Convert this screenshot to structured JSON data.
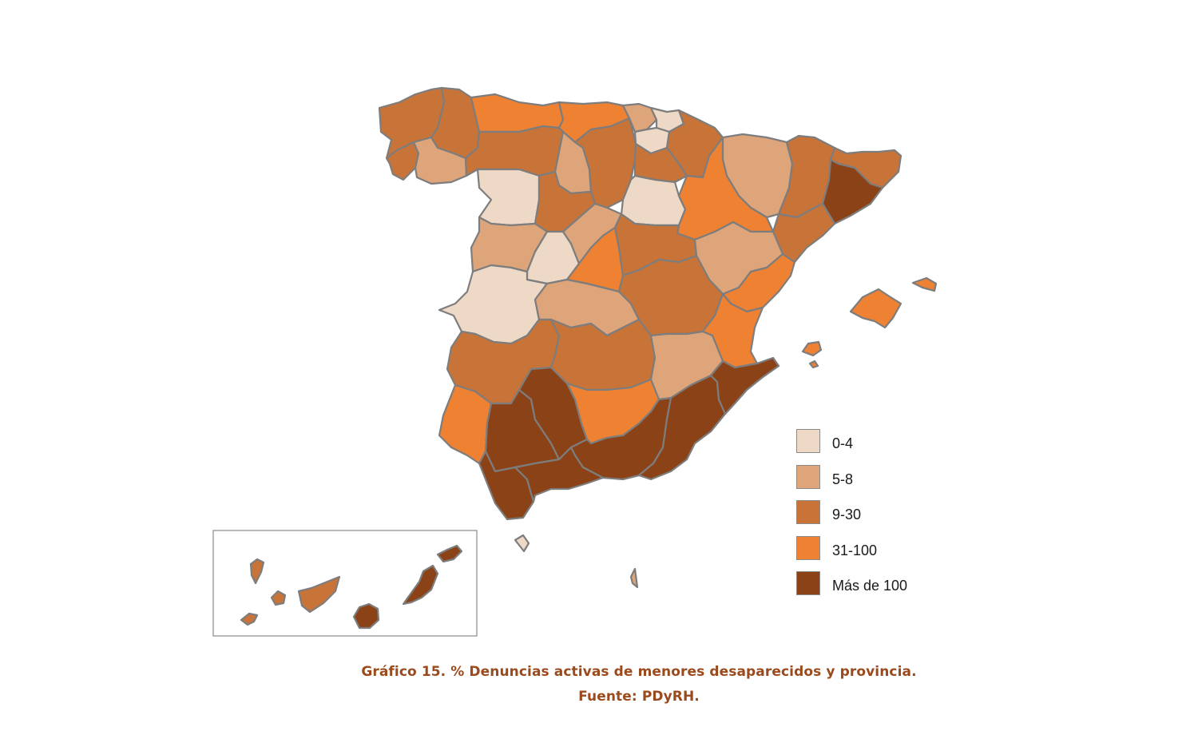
{
  "colors": {
    "c1": "#eed8c6",
    "c2": "#dfa57a",
    "c3": "#c87337",
    "c4": "#ee8132",
    "c5": "#8b4216",
    "border": "#7d7d7d",
    "caption": "#9a4a1c"
  },
  "legend": {
    "items": [
      {
        "label": "0-4",
        "color_key": "c1"
      },
      {
        "label": "5-8",
        "color_key": "c2"
      },
      {
        "label": "9-30",
        "color_key": "c3"
      },
      {
        "label": "31-100",
        "color_key": "c4"
      },
      {
        "label": "Más de 100",
        "color_key": "c5"
      }
    ]
  },
  "caption": {
    "title": "Gráfico 15. % Denuncias activas de menores desaparecidos y provincia.",
    "source": "Fuente: PDyRH."
  },
  "provinces": [
    {
      "name": "a-coruna",
      "class": "c3"
    },
    {
      "name": "lugo",
      "class": "c3"
    },
    {
      "name": "pontevedra",
      "class": "c3"
    },
    {
      "name": "ourense",
      "class": "c2"
    },
    {
      "name": "asturias",
      "class": "c4"
    },
    {
      "name": "cantabria",
      "class": "c4"
    },
    {
      "name": "bizkaia",
      "class": "c2"
    },
    {
      "name": "gipuzkoa",
      "class": "c1"
    },
    {
      "name": "alava",
      "class": "c1"
    },
    {
      "name": "navarra",
      "class": "c3"
    },
    {
      "name": "leon",
      "class": "c3"
    },
    {
      "name": "palencia",
      "class": "c2"
    },
    {
      "name": "burgos",
      "class": "c3"
    },
    {
      "name": "la-rioja",
      "class": "c3"
    },
    {
      "name": "zamora",
      "class": "c1"
    },
    {
      "name": "valladolid",
      "class": "c3"
    },
    {
      "name": "soria",
      "class": "c1"
    },
    {
      "name": "huesca",
      "class": "c2"
    },
    {
      "name": "zaragoza",
      "class": "c4"
    },
    {
      "name": "lleida",
      "class": "c3"
    },
    {
      "name": "girona",
      "class": "c3"
    },
    {
      "name": "barcelona",
      "class": "c5"
    },
    {
      "name": "tarragona",
      "class": "c3"
    },
    {
      "name": "salamanca",
      "class": "c2"
    },
    {
      "name": "avila",
      "class": "c1"
    },
    {
      "name": "segovia",
      "class": "c2"
    },
    {
      "name": "madrid",
      "class": "c4"
    },
    {
      "name": "guadalajara",
      "class": "c3"
    },
    {
      "name": "teruel",
      "class": "c2"
    },
    {
      "name": "castellon",
      "class": "c4"
    },
    {
      "name": "caceres",
      "class": "c1"
    },
    {
      "name": "toledo",
      "class": "c2"
    },
    {
      "name": "cuenca",
      "class": "c3"
    },
    {
      "name": "valencia",
      "class": "c4"
    },
    {
      "name": "badajoz",
      "class": "c3"
    },
    {
      "name": "ciudad-real",
      "class": "c3"
    },
    {
      "name": "albacete",
      "class": "c2"
    },
    {
      "name": "alicante",
      "class": "c5"
    },
    {
      "name": "huelva",
      "class": "c4"
    },
    {
      "name": "sevilla",
      "class": "c5"
    },
    {
      "name": "cordoba",
      "class": "c5"
    },
    {
      "name": "jaen",
      "class": "c4"
    },
    {
      "name": "granada",
      "class": "c5"
    },
    {
      "name": "almeria",
      "class": "c5"
    },
    {
      "name": "murcia",
      "class": "c5"
    },
    {
      "name": "cadiz",
      "class": "c5"
    },
    {
      "name": "malaga",
      "class": "c5"
    },
    {
      "name": "mallorca",
      "class": "c4"
    },
    {
      "name": "menorca",
      "class": "c4"
    },
    {
      "name": "ibiza",
      "class": "c4"
    },
    {
      "name": "formentera",
      "class": "c4"
    },
    {
      "name": "ceuta",
      "class": "c1"
    },
    {
      "name": "melilla",
      "class": "c2"
    },
    {
      "name": "la-palma",
      "class": "c3"
    },
    {
      "name": "el-hierro",
      "class": "c3"
    },
    {
      "name": "la-gomera",
      "class": "c3"
    },
    {
      "name": "tenerife",
      "class": "c3"
    },
    {
      "name": "gran-canaria",
      "class": "c5"
    },
    {
      "name": "fuerteventura",
      "class": "c5"
    },
    {
      "name": "lanzarote",
      "class": "c5"
    }
  ]
}
